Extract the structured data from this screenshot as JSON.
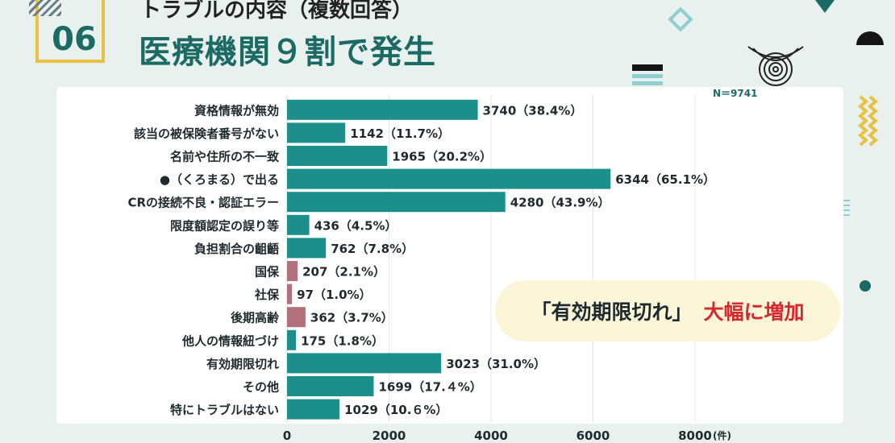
{
  "header": {
    "section_number": "06",
    "subtitle": "トラブルの内容（複数回答）",
    "title": "医療機関９割で発生",
    "sample_size": "N＝9741"
  },
  "callout": {
    "quote": "「有効期限切れ」",
    "emphasis": "大幅に増加"
  },
  "colors": {
    "teal": "#1d8f8a",
    "rose": "#b0717c",
    "title_green": "#1b6a63",
    "accent_red": "#d7262e",
    "badge_yellow": "#e8c240"
  },
  "chart_data": {
    "type": "bar",
    "orientation": "horizontal",
    "categories": [
      "資格情報が無効",
      "該当の被保険者番号がない",
      "名前や住所の不一致",
      "●（くろまる）で出る",
      "CRの接続不良・認証エラー",
      "限度額認定の誤り等",
      "負担割合の齟齬",
      "国保",
      "社保",
      "後期高齢",
      "他人の情報紐づけ",
      "有効期限切れ",
      "その他",
      "特にトラブルはない"
    ],
    "values": [
      3740,
      1142,
      1965,
      6344,
      4280,
      436,
      762,
      207,
      97,
      362,
      175,
      3023,
      1699,
      1029
    ],
    "value_labels": [
      "3740（38.4%）",
      "1142（11.7%）",
      "1965（20.2%）",
      "6344（65.1%）",
      "4280（43.9%）",
      "436（4.5%）",
      "762（7.8%）",
      "207（2.1%）",
      "97（1.0%）",
      "362（3.7%）",
      "175（1.8%）",
      "3023（31.0%）",
      "1699（17.４%）",
      "1029（10.６%）"
    ],
    "bar_colors": [
      "teal",
      "teal",
      "teal",
      "teal",
      "teal",
      "teal",
      "teal",
      "rose",
      "rose",
      "rose",
      "teal",
      "teal",
      "teal",
      "teal"
    ],
    "xlim": [
      0,
      8000
    ],
    "xticks": [
      0,
      2000,
      4000,
      6000,
      8000
    ],
    "xtick_labels": [
      "0",
      "2000",
      "4000",
      "6000",
      "8000"
    ],
    "x_unit": "(件)",
    "grid": "vertical"
  }
}
